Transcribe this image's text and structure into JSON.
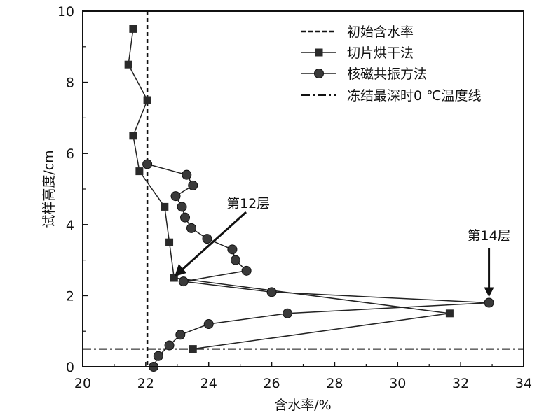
{
  "chart_data": {
    "type": "line",
    "xlabel": "含水率/%",
    "ylabel": "试样高度/cm",
    "xlim": [
      20,
      34
    ],
    "ylim": [
      0,
      10
    ],
    "x_ticks": [
      "20",
      "22",
      "24",
      "26",
      "28",
      "30",
      "32",
      "34"
    ],
    "y_ticks": [
      "0",
      "2",
      "4",
      "6",
      "8",
      "10"
    ],
    "legend_position": "top-right",
    "grid": false,
    "series": [
      {
        "name": "初始含水率",
        "style": "dashed-vertical",
        "x_value": 22.05
      },
      {
        "name": "切片烘干法",
        "marker": "square",
        "x": [
          21.6,
          21.45,
          22.05,
          21.6,
          21.8,
          22.6,
          22.75,
          22.9,
          31.65,
          23.5
        ],
        "y": [
          9.5,
          8.5,
          7.5,
          6.5,
          5.5,
          4.5,
          3.5,
          2.5,
          1.5,
          0.5
        ]
      },
      {
        "name": "核磁共振方法",
        "marker": "circle",
        "x": [
          22.05,
          23.3,
          23.5,
          22.95,
          23.15,
          23.25,
          23.45,
          23.95,
          24.75,
          24.85,
          25.2,
          23.2,
          26.0,
          32.9,
          26.5,
          24.0,
          23.1,
          22.75,
          22.4,
          22.25
        ],
        "y": [
          5.7,
          5.4,
          5.1,
          4.8,
          4.5,
          4.2,
          3.9,
          3.6,
          3.3,
          3.0,
          2.7,
          2.4,
          2.1,
          1.8,
          1.5,
          1.2,
          0.9,
          0.6,
          0.3,
          0.0
        ]
      },
      {
        "name": "冻结最深时0 ℃温度线",
        "style": "dashdot-horizontal",
        "y_value": 0.5
      }
    ],
    "annotations": [
      {
        "text": "第12层",
        "x": 22.85,
        "y": 2.5
      },
      {
        "text": "第14层",
        "x": 32.9,
        "y": 1.8
      }
    ]
  }
}
